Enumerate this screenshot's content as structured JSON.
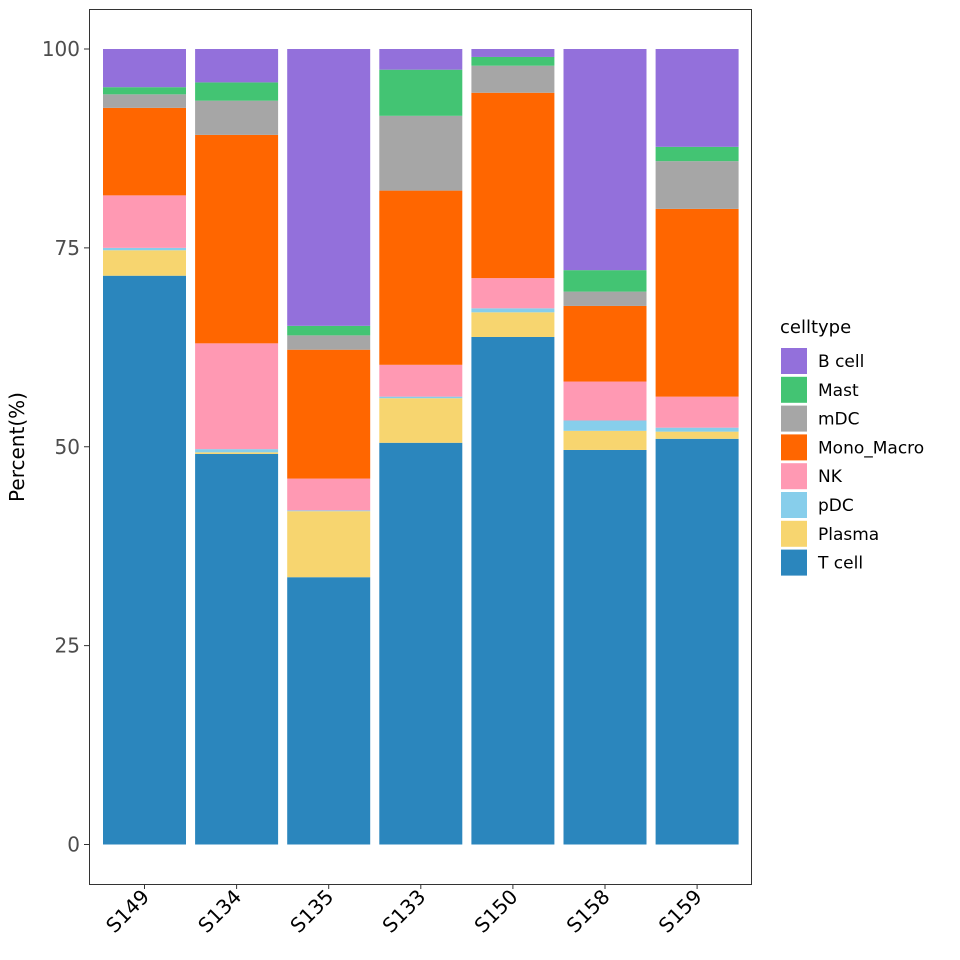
{
  "chart_data": {
    "type": "bar",
    "stacked": true,
    "title": "",
    "xlabel": "",
    "ylabel": "Percent(%)",
    "ylim": [
      -4.9,
      104.9
    ],
    "yticks": [
      0,
      25,
      50,
      75,
      100
    ],
    "ytick_labels": [
      "0",
      "25",
      "50",
      "75",
      "100"
    ],
    "grid": false,
    "legend_title": "celltype",
    "legend_position": "right",
    "categories": [
      "S149",
      "S134",
      "S135",
      "S133",
      "S150",
      "S158",
      "S159"
    ],
    "series": [
      {
        "name": "B cell",
        "color": "#9370DB",
        "values": [
          4.8,
          4.2,
          34.8,
          2.6,
          1.0,
          27.8,
          12.3
        ]
      },
      {
        "name": "Mast",
        "color": "#43C473",
        "values": [
          0.9,
          2.3,
          1.2,
          5.8,
          1.1,
          2.7,
          1.8
        ]
      },
      {
        "name": "mDC",
        "color": "#A6A6A6",
        "values": [
          1.7,
          4.3,
          1.8,
          9.4,
          3.4,
          1.8,
          6.0
        ]
      },
      {
        "name": "Mono_Macro",
        "color": "#FF6600",
        "values": [
          11.0,
          26.2,
          16.2,
          21.9,
          23.3,
          9.5,
          23.6
        ]
      },
      {
        "name": "NK",
        "color": "#FF99B3",
        "values": [
          6.6,
          13.3,
          4.0,
          4.0,
          3.8,
          4.9,
          3.9
        ]
      },
      {
        "name": "pDC",
        "color": "#87CEEB",
        "values": [
          0.3,
          0.4,
          0.1,
          0.2,
          0.5,
          1.3,
          0.5
        ]
      },
      {
        "name": "Plasma",
        "color": "#F7D56F",
        "values": [
          3.2,
          0.2,
          8.3,
          5.6,
          3.1,
          2.4,
          0.9
        ]
      },
      {
        "name": "T cell",
        "color": "#2B86BD",
        "values": [
          71.5,
          49.1,
          33.6,
          50.5,
          63.8,
          49.6,
          51.0
        ]
      }
    ]
  }
}
